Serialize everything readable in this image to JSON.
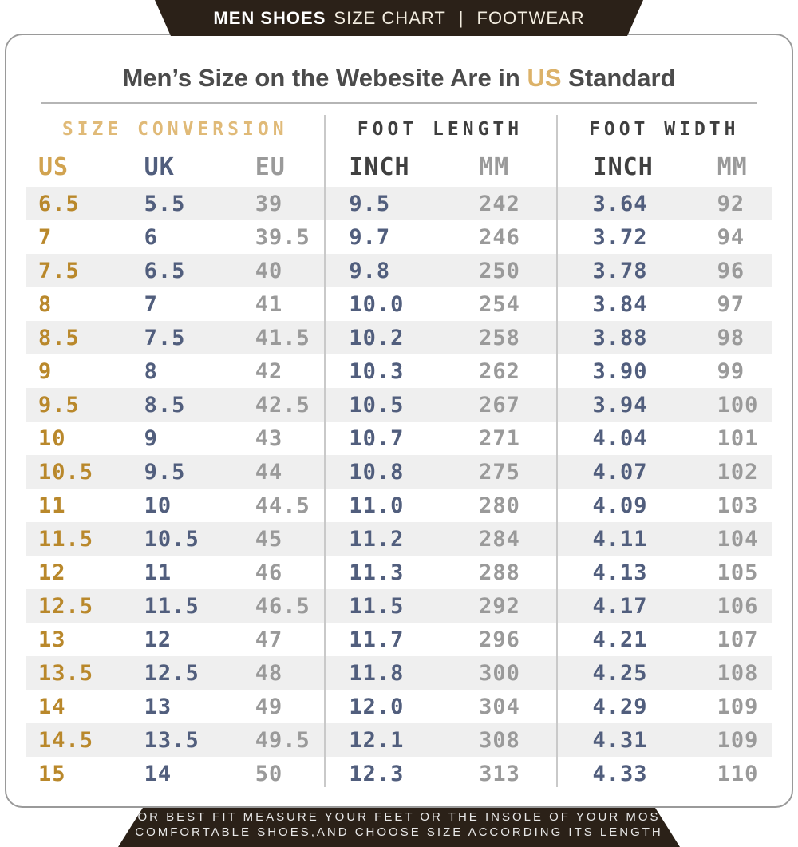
{
  "banner": {
    "brand": "MEN SHOES",
    "subtitle": "SIZE CHART",
    "separator": "|",
    "category": "FOOTWEAR"
  },
  "card": {
    "title_prefix": "Men’s Size on the Webesite Are in ",
    "title_highlight": "US",
    "title_suffix": " Standard"
  },
  "colors": {
    "banner_bg": "#2b2118",
    "accent_gold": "#b9882b",
    "accent_tan": "#e0ba78",
    "navy": "#515e7d",
    "gray": "#9a9a9a",
    "row_alt": "#efefef"
  },
  "table": {
    "sections": [
      {
        "label": "SIZE CONVERSION",
        "columns": [
          "US",
          "UK",
          "EU"
        ]
      },
      {
        "label": "FOOT LENGTH",
        "columns": [
          "INCH",
          "MM"
        ]
      },
      {
        "label": "FOOT WIDTH",
        "columns": [
          "INCH",
          "MM"
        ]
      }
    ],
    "column_headers": [
      "US",
      "UK",
      "EU",
      "INCH",
      "MM",
      "INCH",
      "MM"
    ],
    "rows": [
      [
        "6.5",
        "5.5",
        "39",
        "9.5",
        "242",
        "3.64",
        "92"
      ],
      [
        "7",
        "6",
        "39.5",
        "9.7",
        "246",
        "3.72",
        "94"
      ],
      [
        "7.5",
        "6.5",
        "40",
        "9.8",
        "250",
        "3.78",
        "96"
      ],
      [
        "8",
        "7",
        "41",
        "10.0",
        "254",
        "3.84",
        "97"
      ],
      [
        "8.5",
        "7.5",
        "41.5",
        "10.2",
        "258",
        "3.88",
        "98"
      ],
      [
        "9",
        "8",
        "42",
        "10.3",
        "262",
        "3.90",
        "99"
      ],
      [
        "9.5",
        "8.5",
        "42.5",
        "10.5",
        "267",
        "3.94",
        "100"
      ],
      [
        "10",
        "9",
        "43",
        "10.7",
        "271",
        "4.04",
        "101"
      ],
      [
        "10.5",
        "9.5",
        "44",
        "10.8",
        "275",
        "4.07",
        "102"
      ],
      [
        "11",
        "10",
        "44.5",
        "11.0",
        "280",
        "4.09",
        "103"
      ],
      [
        "11.5",
        "10.5",
        "45",
        "11.2",
        "284",
        "4.11",
        "104"
      ],
      [
        "12",
        "11",
        "46",
        "11.3",
        "288",
        "4.13",
        "105"
      ],
      [
        "12.5",
        "11.5",
        "46.5",
        "11.5",
        "292",
        "4.17",
        "106"
      ],
      [
        "13",
        "12",
        "47",
        "11.7",
        "296",
        "4.21",
        "107"
      ],
      [
        "13.5",
        "12.5",
        "48",
        "11.8",
        "300",
        "4.25",
        "108"
      ],
      [
        "14",
        "13",
        "49",
        "12.0",
        "304",
        "4.29",
        "109"
      ],
      [
        "14.5",
        "13.5",
        "49.5",
        "12.1",
        "308",
        "4.31",
        "109"
      ],
      [
        "15",
        "14",
        "50",
        "12.3",
        "313",
        "4.33",
        "110"
      ]
    ]
  },
  "footer": {
    "line1": "FOR BEST FIT MEASURE YOUR FEET OR THE INSOLE OF YOUR MOST",
    "line2": "COMFORTABLE SHOES,AND CHOOSE SIZE ACCORDING ITS LENGTH"
  },
  "chart_data": {
    "type": "table",
    "title": "Men's Size on the Webesite Are in US Standard",
    "sections": [
      "SIZE CONVERSION",
      "FOOT LENGTH",
      "FOOT WIDTH"
    ],
    "columns": [
      "US",
      "UK",
      "EU",
      "FOOT LENGTH INCH",
      "FOOT LENGTH MM",
      "FOOT WIDTH INCH",
      "FOOT WIDTH MM"
    ],
    "rows": [
      [
        6.5,
        5.5,
        39,
        9.5,
        242,
        3.64,
        92
      ],
      [
        7,
        6,
        39.5,
        9.7,
        246,
        3.72,
        94
      ],
      [
        7.5,
        6.5,
        40,
        9.8,
        250,
        3.78,
        96
      ],
      [
        8,
        7,
        41,
        10.0,
        254,
        3.84,
        97
      ],
      [
        8.5,
        7.5,
        41.5,
        10.2,
        258,
        3.88,
        98
      ],
      [
        9,
        8,
        42,
        10.3,
        262,
        3.9,
        99
      ],
      [
        9.5,
        8.5,
        42.5,
        10.5,
        267,
        3.94,
        100
      ],
      [
        10,
        9,
        43,
        10.7,
        271,
        4.04,
        101
      ],
      [
        10.5,
        9.5,
        44,
        10.8,
        275,
        4.07,
        102
      ],
      [
        11,
        10,
        44.5,
        11.0,
        280,
        4.09,
        103
      ],
      [
        11.5,
        10.5,
        45,
        11.2,
        284,
        4.11,
        104
      ],
      [
        12,
        11,
        46,
        11.3,
        288,
        4.13,
        105
      ],
      [
        12.5,
        11.5,
        46.5,
        11.5,
        292,
        4.17,
        106
      ],
      [
        13,
        12,
        47,
        11.7,
        296,
        4.21,
        107
      ],
      [
        13.5,
        12.5,
        48,
        11.8,
        300,
        4.25,
        108
      ],
      [
        14,
        13,
        49,
        12.0,
        304,
        4.29,
        109
      ],
      [
        14.5,
        13.5,
        49.5,
        12.1,
        308,
        4.31,
        109
      ],
      [
        15,
        14,
        50,
        12.3,
        313,
        4.33,
        110
      ]
    ]
  }
}
